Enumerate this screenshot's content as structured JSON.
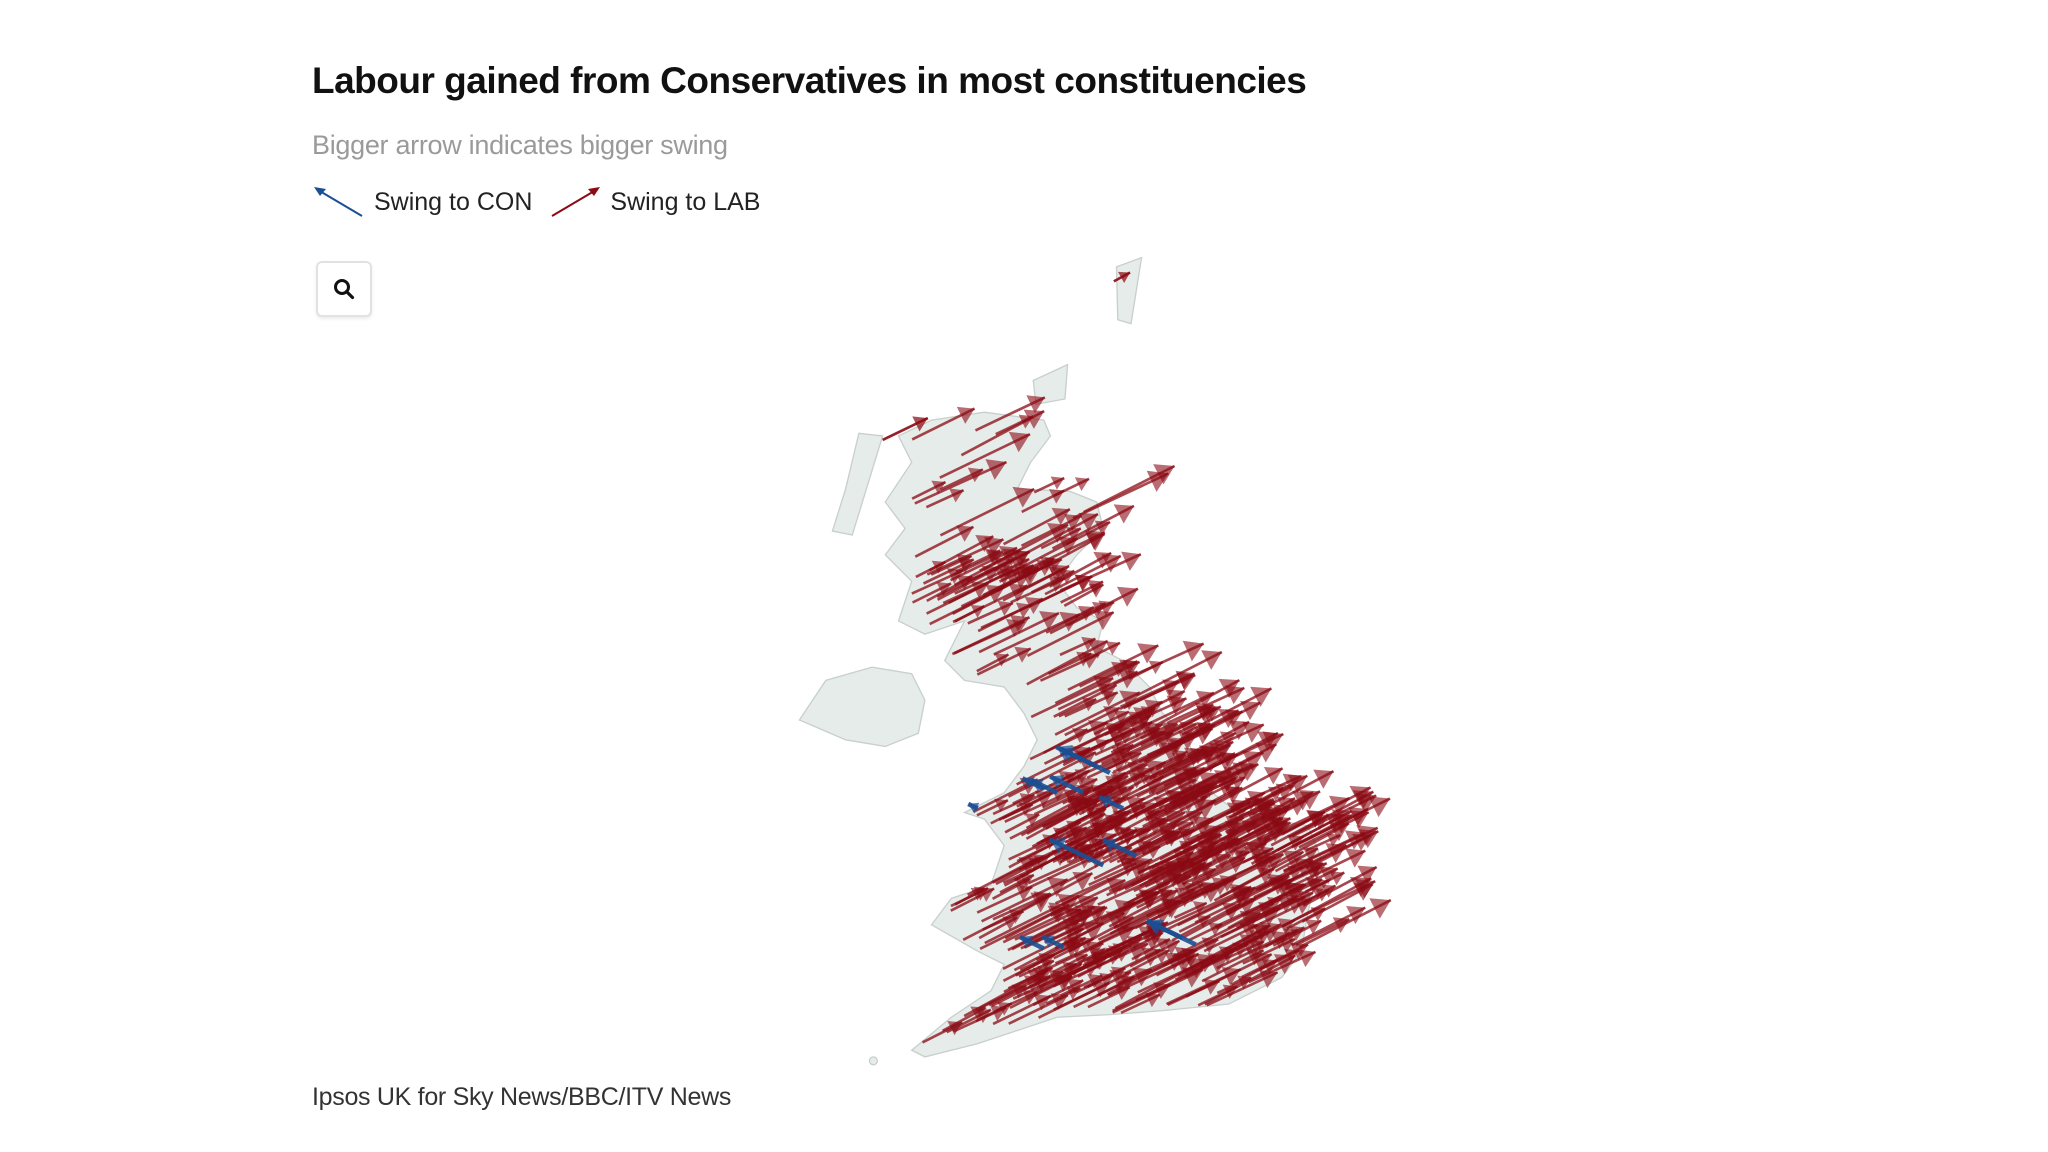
{
  "header": {
    "title": "Labour gained from Conservatives in most constituencies",
    "subtitle": "Bigger arrow indicates bigger swing"
  },
  "legend": [
    {
      "label": "Swing to CON",
      "color": "#1b4f93",
      "direction": "up-left"
    },
    {
      "label": "Swing to LAB",
      "color": "#8b0a14",
      "direction": "up-right"
    }
  ],
  "controls": {
    "search_icon": "search-icon"
  },
  "map": {
    "land_color": "#e6ece9",
    "border_color": "#c8cfcc",
    "con_color": "#1b4f93",
    "lab_color": "#8b0a14",
    "dominant_swing": "Swing to LAB"
  },
  "footer": {
    "source": "Ipsos UK for Sky News/BBC/ITV News"
  }
}
